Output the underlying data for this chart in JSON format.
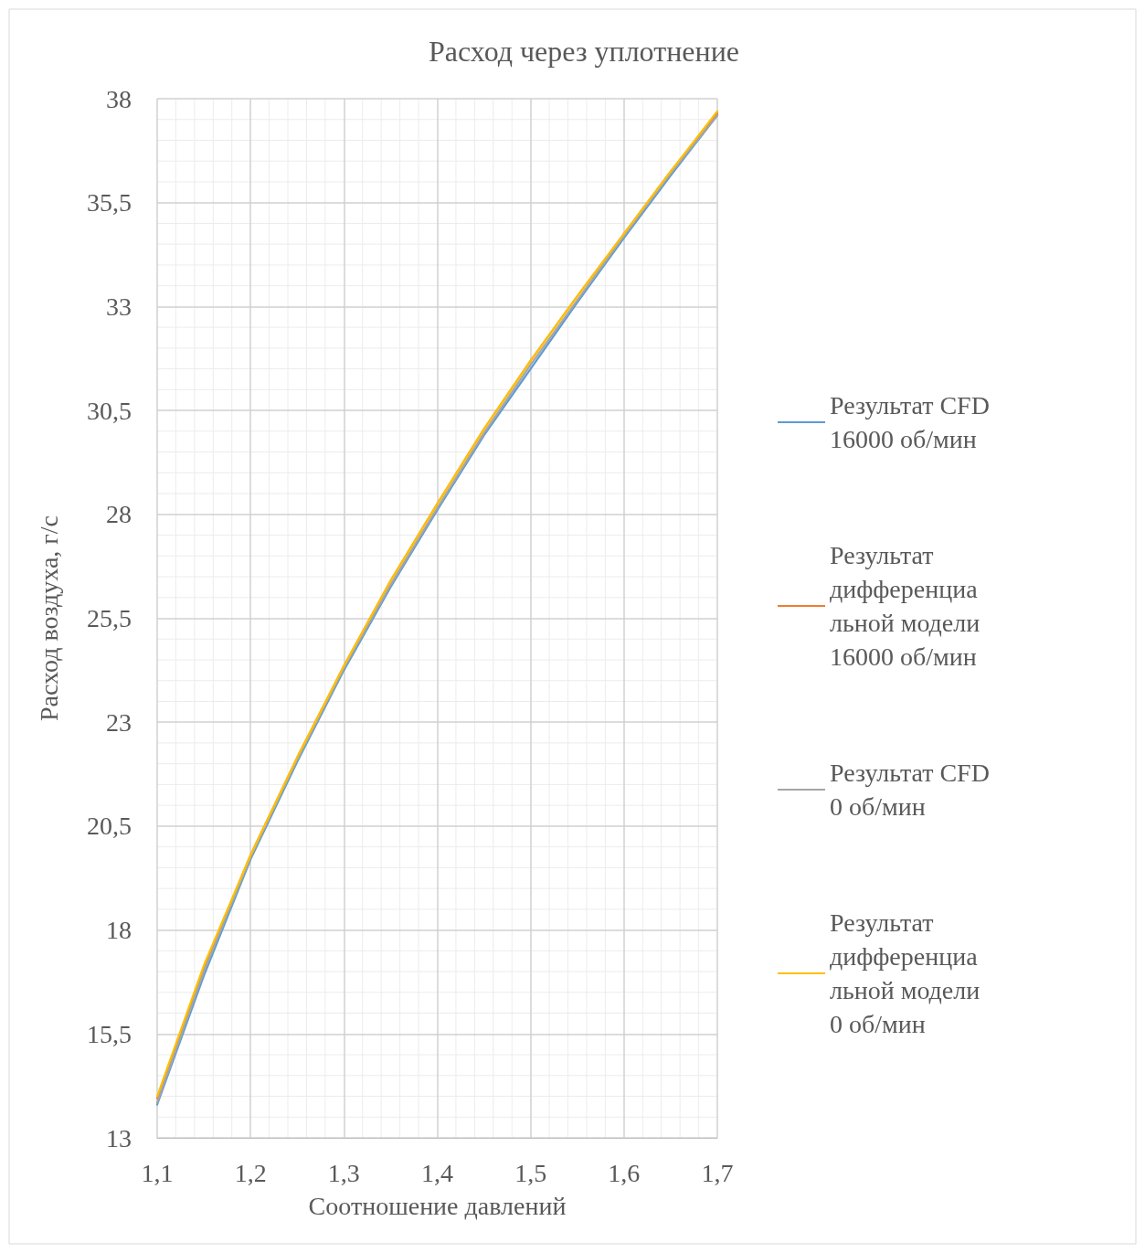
{
  "chart_data": {
    "type": "line",
    "title": "Расход через уплотнение",
    "xlabel": "Соотношение давлений",
    "ylabel": "Расход воздуха, г/с",
    "x": [
      1.1,
      1.15,
      1.2,
      1.25,
      1.3,
      1.35,
      1.4,
      1.45,
      1.5,
      1.55,
      1.6,
      1.65,
      1.7
    ],
    "series": [
      {
        "name": "Результат CFD 16000 об/мин",
        "color": "#5b9bd5",
        "values": [
          13.8,
          16.9,
          19.7,
          22.05,
          24.25,
          26.25,
          28.1,
          29.9,
          31.5,
          33.1,
          34.65,
          36.15,
          37.6
        ]
      },
      {
        "name": "Результат дифференциальной модели 16000 об/мин",
        "color": "#ed7d31",
        "values": [
          13.95,
          17.1,
          19.8,
          22.15,
          24.35,
          26.4,
          28.25,
          30.05,
          31.7,
          33.25,
          34.75,
          36.25,
          37.65
        ]
      },
      {
        "name": "Результат CFD 0 об/мин",
        "color": "#a5a5a5",
        "values": [
          13.85,
          17.0,
          19.75,
          22.1,
          24.3,
          26.3,
          28.15,
          29.95,
          31.6,
          33.15,
          34.7,
          36.2,
          37.6
        ]
      },
      {
        "name": "Результат дифференциальной модели 0 об/мин",
        "color": "#ffc000",
        "values": [
          14.0,
          17.15,
          19.8,
          22.15,
          24.35,
          26.4,
          28.25,
          30.05,
          31.7,
          33.25,
          34.75,
          36.25,
          37.7
        ]
      }
    ],
    "xlim": [
      1.1,
      1.7
    ],
    "xticks": [
      {
        "value": 1.1,
        "label": "1,1"
      },
      {
        "value": 1.2,
        "label": "1,2"
      },
      {
        "value": 1.3,
        "label": "1,3"
      },
      {
        "value": 1.4,
        "label": "1,4"
      },
      {
        "value": 1.5,
        "label": "1,5"
      },
      {
        "value": 1.6,
        "label": "1,6"
      },
      {
        "value": 1.7,
        "label": "1,7"
      }
    ],
    "ylim": [
      13,
      38
    ],
    "yticks": [
      13,
      {
        "value": 15.5,
        "label": "15,5"
      },
      18,
      {
        "value": 20.5,
        "label": "20,5"
      },
      23,
      {
        "value": 25.5,
        "label": "25,5"
      },
      28,
      {
        "value": 30.5,
        "label": "30,5"
      },
      33,
      {
        "value": 35.5,
        "label": "35,5"
      },
      38
    ],
    "grid": true,
    "legend": "right",
    "marker": "none",
    "line_style": "solid"
  }
}
